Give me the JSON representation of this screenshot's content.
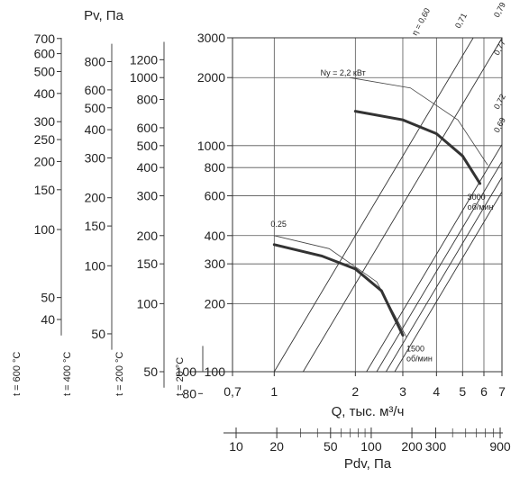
{
  "chart_data": {
    "type": "line",
    "y_axis_title": "Pv, Па",
    "x_axis_title": "Q, тыс. м³/ч",
    "pdv_axis_title": "Pdv, Па",
    "x_scale": "log",
    "y_scale": "log",
    "xlim": [
      0.7,
      7
    ],
    "ylim": [
      100,
      3000
    ],
    "grid": true,
    "x_ticks": [
      {
        "value": 0.7,
        "label": "0,7"
      },
      {
        "value": 1,
        "label": "1"
      },
      {
        "value": 2,
        "label": "2"
      },
      {
        "value": 3,
        "label": "3"
      },
      {
        "value": 4,
        "label": "4"
      },
      {
        "value": 5,
        "label": "5"
      },
      {
        "value": 6,
        "label": "6"
      },
      {
        "value": 7,
        "label": "7"
      }
    ],
    "y_ticks": [
      {
        "value": 100,
        "label": "100"
      },
      {
        "value": 200,
        "label": "200"
      },
      {
        "value": 300,
        "label": "300"
      },
      {
        "value": 400,
        "label": "400"
      },
      {
        "value": 600,
        "label": "600"
      },
      {
        "value": 800,
        "label": "800"
      },
      {
        "value": 1000,
        "label": "1000"
      },
      {
        "value": 2000,
        "label": "2000"
      },
      {
        "value": 3000,
        "label": "3000"
      }
    ],
    "pdv_ticks": [
      {
        "value": 10,
        "label": "10"
      },
      {
        "value": 20,
        "label": "20"
      },
      {
        "value": 50,
        "label": "50"
      },
      {
        "value": 100,
        "label": "100"
      },
      {
        "value": 200,
        "label": "200"
      },
      {
        "value": 300,
        "label": "300"
      },
      {
        "value": 900,
        "label": "900"
      }
    ],
    "temperature_scales": [
      {
        "label": "t = 600 °C",
        "ticks": [
          {
            "pv": 40,
            "label": "40"
          },
          {
            "pv": 50,
            "label": "50"
          },
          {
            "pv": 100,
            "label": "100"
          },
          {
            "pv": 150,
            "label": "150"
          },
          {
            "pv": 200,
            "label": "200"
          },
          {
            "pv": 250,
            "label": "250"
          },
          {
            "pv": 300,
            "label": "300"
          },
          {
            "pv": 400,
            "label": "400"
          },
          {
            "pv": 500,
            "label": "500"
          },
          {
            "pv": 600,
            "label": "600"
          },
          {
            "pv": 700,
            "label": "700"
          }
        ]
      },
      {
        "label": "t = 400 °C",
        "ticks": [
          {
            "pv": 50,
            "label": "50"
          },
          {
            "pv": 100,
            "label": "100"
          },
          {
            "pv": 150,
            "label": "150"
          },
          {
            "pv": 200,
            "label": "200"
          },
          {
            "pv": 300,
            "label": "300"
          },
          {
            "pv": 400,
            "label": "400"
          },
          {
            "pv": 500,
            "label": "500"
          },
          {
            "pv": 600,
            "label": "600"
          },
          {
            "pv": 800,
            "label": "800"
          }
        ]
      },
      {
        "label": "t = 200 °C",
        "ticks": [
          {
            "pv": 50,
            "label": "50"
          },
          {
            "pv": 100,
            "label": "100"
          },
          {
            "pv": 150,
            "label": "150"
          },
          {
            "pv": 200,
            "label": "200"
          },
          {
            "pv": 300,
            "label": "300"
          },
          {
            "pv": 400,
            "label": "400"
          },
          {
            "pv": 500,
            "label": "500"
          },
          {
            "pv": 600,
            "label": "600"
          },
          {
            "pv": 800,
            "label": "800"
          },
          {
            "pv": 1000,
            "label": "1000"
          },
          {
            "pv": 1200,
            "label": "1200"
          }
        ]
      },
      {
        "label": "t = 20 °C",
        "ticks": [
          {
            "pv": 80,
            "label": "80"
          },
          {
            "pv": 100,
            "label": "100"
          }
        ]
      }
    ],
    "efficiency_lines": [
      {
        "label": "η = 0,60",
        "q0": 1.0
      },
      {
        "label": "0,71",
        "q0": 1.28
      },
      {
        "label": "0,79",
        "q0": 2.2
      },
      {
        "label": "0,77",
        "q0": 2.4
      },
      {
        "label": "0,72",
        "q0": 2.6
      },
      {
        "label": "0,69",
        "q0": 2.8
      }
    ],
    "power_lines": [
      {
        "label": "Nу = 2,2 кВт",
        "points": [
          [
            1.9,
            2000
          ],
          [
            3.2,
            1800
          ],
          [
            4.8,
            1300
          ],
          [
            6.2,
            820
          ]
        ]
      },
      {
        "label": "0.25",
        "points": [
          [
            1.0,
            400
          ],
          [
            1.6,
            350
          ],
          [
            2.4,
            250
          ],
          [
            3.1,
            142
          ]
        ]
      }
    ],
    "series": [
      {
        "name": "3000 об/мин",
        "points": [
          [
            2.0,
            1420
          ],
          [
            3.0,
            1300
          ],
          [
            4.0,
            1130
          ],
          [
            5.0,
            900
          ],
          [
            5.8,
            680
          ]
        ]
      },
      {
        "name": "1500 об/мин",
        "points": [
          [
            1.0,
            365
          ],
          [
            1.5,
            325
          ],
          [
            2.0,
            285
          ],
          [
            2.5,
            228
          ],
          [
            3.0,
            145
          ]
        ]
      }
    ]
  }
}
